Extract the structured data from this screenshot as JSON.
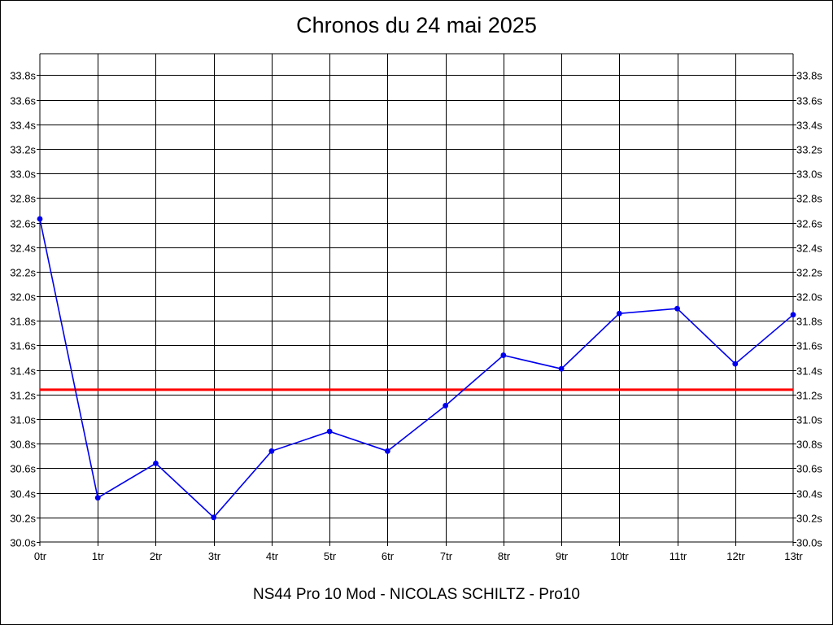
{
  "chart_data": {
    "type": "line",
    "title": "Chronos du 24 mai 2025",
    "footer": "NS44 Pro 10 Mod - NICOLAS SCHILTZ - Pro10",
    "x": [
      0,
      1,
      2,
      3,
      4,
      5,
      6,
      7,
      8,
      9,
      10,
      11,
      12,
      13
    ],
    "x_tick_labels": [
      "0tr",
      "1tr",
      "2tr",
      "3tr",
      "4tr",
      "5tr",
      "6tr",
      "7tr",
      "8tr",
      "9tr",
      "10tr",
      "11tr",
      "12tr",
      "13tr"
    ],
    "y_ticks": [
      30.0,
      30.2,
      30.4,
      30.6,
      30.8,
      31.0,
      31.2,
      31.4,
      31.6,
      31.8,
      32.0,
      32.2,
      32.4,
      32.6,
      32.8,
      33.0,
      33.2,
      33.4,
      33.6,
      33.8
    ],
    "y_tick_labels": [
      "30.0s",
      "30.2s",
      "30.4s",
      "30.6s",
      "30.8s",
      "31.0s",
      "31.2s",
      "31.4s",
      "31.6s",
      "31.8s",
      "32.0s",
      "32.2s",
      "32.4s",
      "32.6s",
      "32.8s",
      "33.0s",
      "33.2s",
      "33.4s",
      "33.6s",
      "33.8s"
    ],
    "ylim": [
      30.0,
      33.8
    ],
    "xlim": [
      0,
      13
    ],
    "grid": true,
    "series": [
      {
        "values": [
          32.63,
          30.36,
          30.64,
          30.2,
          30.74,
          30.9,
          30.74,
          31.11,
          31.52,
          31.41,
          31.86,
          31.9,
          31.45,
          31.85
        ],
        "color": "#0000ee",
        "marker": "circle"
      }
    ],
    "reference_line": {
      "y": 31.24,
      "color": "#ff0000"
    }
  }
}
